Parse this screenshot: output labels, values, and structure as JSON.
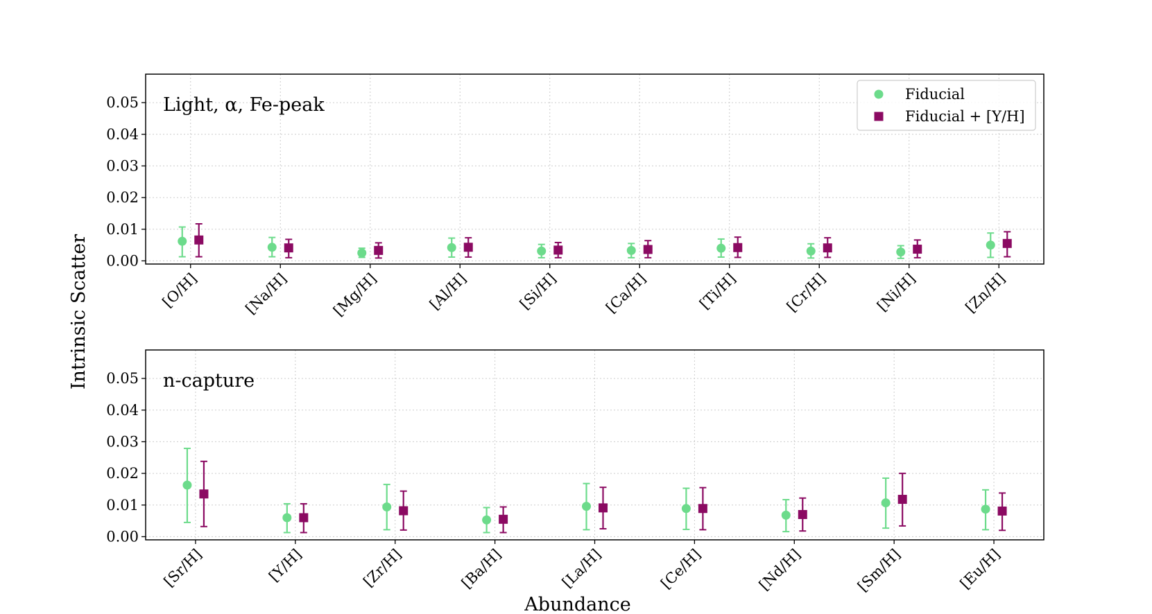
{
  "figure": {
    "ylabel": "Intrinsic Scatter",
    "xlabel": "Abundance"
  },
  "legend": {
    "position": "top-right",
    "items": [
      {
        "label": "Fiducial",
        "marker": "circle",
        "color": "#6cdb8b"
      },
      {
        "label": "Fiducial + [Y/H]",
        "marker": "square",
        "color": "#8b0a62"
      }
    ]
  },
  "chart_data": [
    {
      "type": "scatter",
      "title": "Light, α, Fe-peak",
      "ylim": [
        -0.001,
        0.059
      ],
      "yticks": [
        "0.00",
        "0.01",
        "0.02",
        "0.03",
        "0.04",
        "0.05"
      ],
      "grid": true,
      "categories": [
        "[O/H]",
        "[Na/H]",
        "[Mg/H]",
        "[Al/H]",
        "[Si/H]",
        "[Ca/H]",
        "[Ti/H]",
        "[Cr/H]",
        "[Ni/H]",
        "[Zn/H]"
      ],
      "series": [
        {
          "name": "Fiducial",
          "marker": "circle",
          "color": "#6cdb8b",
          "values": [
            0.0062,
            0.0043,
            0.0025,
            0.0042,
            0.0031,
            0.0033,
            0.004,
            0.0031,
            0.0028,
            0.005
          ],
          "err_low": [
            0.0013,
            0.0013,
            0.0011,
            0.0012,
            0.001,
            0.001,
            0.0012,
            0.0009,
            0.0008,
            0.0011
          ],
          "err_high": [
            0.0107,
            0.0074,
            0.004,
            0.0072,
            0.0052,
            0.0055,
            0.0069,
            0.0054,
            0.0048,
            0.0088
          ]
        },
        {
          "name": "Fiducial + [Y/H]",
          "marker": "square",
          "color": "#8b0a62",
          "values": [
            0.0066,
            0.0041,
            0.0033,
            0.0043,
            0.0034,
            0.0036,
            0.0042,
            0.0041,
            0.0037,
            0.0055
          ],
          "err_low": [
            0.0013,
            0.001,
            0.0009,
            0.0012,
            0.001,
            0.001,
            0.0011,
            0.0011,
            0.001,
            0.0013
          ],
          "err_high": [
            0.0117,
            0.0068,
            0.0057,
            0.0073,
            0.0058,
            0.0064,
            0.0075,
            0.0073,
            0.0066,
            0.0092
          ]
        }
      ]
    },
    {
      "type": "scatter",
      "title": "n-capture",
      "ylim": [
        -0.001,
        0.059
      ],
      "yticks": [
        "0.00",
        "0.01",
        "0.02",
        "0.03",
        "0.04",
        "0.05"
      ],
      "grid": true,
      "categories": [
        "[Sr/H]",
        "[Y/H]",
        "[Zr/H]",
        "[Ba/H]",
        "[La/H]",
        "[Ce/H]",
        "[Nd/H]",
        "[Sm/H]",
        "[Eu/H]"
      ],
      "series": [
        {
          "name": "Fiducial",
          "marker": "circle",
          "color": "#6cdb8b",
          "values": [
            0.0163,
            0.006,
            0.0094,
            0.0053,
            0.0096,
            0.0089,
            0.0068,
            0.0107,
            0.0087
          ],
          "err_low": [
            0.0045,
            0.0013,
            0.0022,
            0.0013,
            0.0022,
            0.0023,
            0.0016,
            0.0027,
            0.0022
          ],
          "err_high": [
            0.0279,
            0.0104,
            0.0165,
            0.0092,
            0.0168,
            0.0153,
            0.0117,
            0.0185,
            0.0148
          ]
        },
        {
          "name": "Fiducial + [Y/H]",
          "marker": "square",
          "color": "#8b0a62",
          "values": [
            0.0135,
            0.006,
            0.0082,
            0.0055,
            0.0091,
            0.0089,
            0.007,
            0.0118,
            0.0081
          ],
          "err_low": [
            0.0032,
            0.0013,
            0.0021,
            0.0013,
            0.0025,
            0.0022,
            0.0018,
            0.0034,
            0.002
          ],
          "err_high": [
            0.0238,
            0.0104,
            0.0144,
            0.0094,
            0.0156,
            0.0155,
            0.0122,
            0.02,
            0.0138
          ]
        }
      ]
    }
  ]
}
